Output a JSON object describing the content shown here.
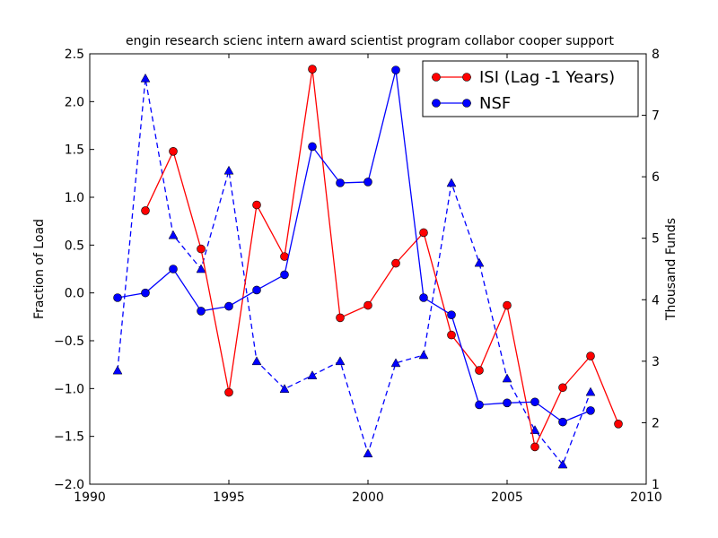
{
  "chart_data": {
    "type": "line",
    "title": "engin research scienc intern award scientist program collabor cooper support",
    "xlabel": "",
    "ylabel_left": "Fraction of Load",
    "ylabel_right": "Thousand Funds",
    "xlim": [
      1990,
      2010
    ],
    "ylim_left": [
      -2.0,
      2.5
    ],
    "ylim_right": [
      1,
      8
    ],
    "x_ticks": [
      1990,
      1995,
      2000,
      2005,
      2010
    ],
    "x_tick_labels": [
      "1990",
      "1995",
      "2000",
      "2005",
      "2010"
    ],
    "y_left_ticks": [
      -2.0,
      -1.5,
      -1.0,
      -0.5,
      0.0,
      0.5,
      1.0,
      1.5,
      2.0,
      2.5
    ],
    "y_left_tick_labels": [
      "−2.0",
      "−1.5",
      "−1.0",
      "−0.5",
      "0.0",
      "0.5",
      "1.0",
      "1.5",
      "2.0",
      "2.5"
    ],
    "y_right_ticks": [
      1,
      2,
      3,
      4,
      5,
      6,
      7,
      8
    ],
    "y_right_tick_labels": [
      "1",
      "2",
      "3",
      "4",
      "5",
      "6",
      "7",
      "8"
    ],
    "legend_position": "top-right",
    "series": [
      {
        "name": "ISI (Lag -1 Years)",
        "axis": "left",
        "color": "#ff0000",
        "marker": "circle",
        "linestyle": "solid",
        "x": [
          1992,
          1993,
          1994,
          1995,
          1996,
          1997,
          1998,
          1999,
          2000,
          2001,
          2002,
          2003,
          2004,
          2005,
          2006,
          2007,
          2008,
          2009
        ],
        "y": [
          0.86,
          1.48,
          0.46,
          -1.04,
          0.92,
          0.38,
          2.34,
          -0.26,
          -0.13,
          0.31,
          0.63,
          -0.44,
          -0.81,
          -0.13,
          -1.61,
          -0.99,
          -0.66,
          -1.37
        ]
      },
      {
        "name": "NSF",
        "axis": "left",
        "color": "#0000ff",
        "marker": "circle",
        "linestyle": "solid",
        "x": [
          1991,
          1992,
          1993,
          1994,
          1995,
          1996,
          1997,
          1998,
          1999,
          2000,
          2001,
          2002,
          2003,
          2004,
          2005,
          2006,
          2007,
          2008
        ],
        "y": [
          -0.05,
          0.0,
          0.25,
          -0.19,
          -0.14,
          0.03,
          0.19,
          1.53,
          1.15,
          1.16,
          2.33,
          -0.05,
          -0.23,
          -1.17,
          -1.15,
          -1.14,
          -1.35,
          -1.23
        ]
      },
      {
        "name": "Thousand Funds",
        "axis": "right",
        "color": "#0000ff",
        "marker": "triangle",
        "linestyle": "dashed",
        "in_legend": false,
        "x": [
          1991,
          1992,
          1993,
          1994,
          1995,
          1996,
          1997,
          1998,
          1999,
          2000,
          2001,
          2002,
          2003,
          2004,
          2005,
          2006,
          2007,
          2008
        ],
        "y": [
          2.85,
          7.6,
          5.05,
          4.5,
          6.1,
          3.0,
          2.55,
          2.77,
          3.0,
          1.5,
          2.97,
          3.1,
          5.9,
          4.6,
          2.72,
          1.88,
          1.32,
          2.5
        ]
      }
    ]
  }
}
